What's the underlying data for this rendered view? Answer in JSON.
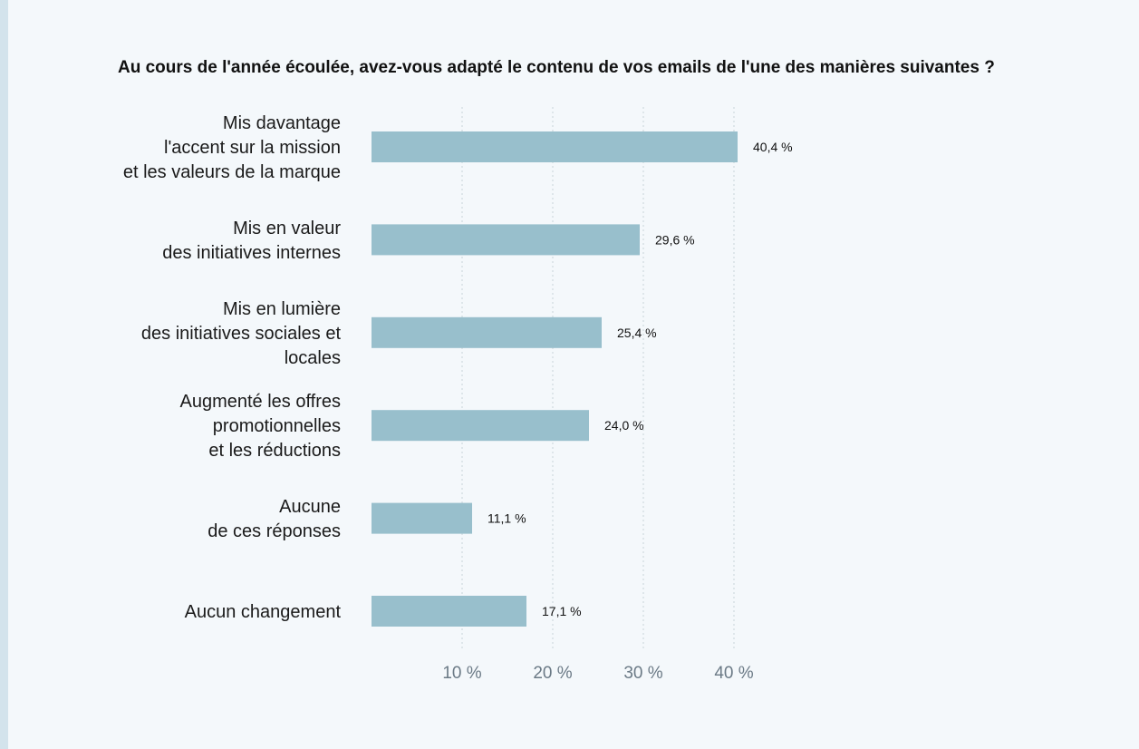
{
  "chart_data": {
    "type": "bar",
    "orientation": "horizontal",
    "title": "Au cours de l'année écoulée, avez-vous adapté le contenu de vos emails de l'une des manières suivantes ?",
    "categories": [
      [
        "Mis davantage",
        "l'accent sur la mission",
        "et les valeurs de la marque"
      ],
      [
        "Mis en valeur",
        "des initiatives internes"
      ],
      [
        "Mis en lumière",
        "des initiatives sociales et",
        "locales"
      ],
      [
        "Augmenté les offres",
        "promotionnelles",
        "et les réductions"
      ],
      [
        "Aucune",
        "de ces réponses"
      ],
      [
        "Aucun changement"
      ]
    ],
    "values": [
      40.4,
      29.6,
      25.4,
      24.0,
      11.1,
      17.1
    ],
    "value_labels": [
      "40,4 %",
      "29,6 %",
      "25,4 %",
      "24,0 %",
      "11,1 %",
      "17,1 %"
    ],
    "x_ticks": [
      10,
      20,
      30,
      40
    ],
    "x_tick_labels": [
      "10 %",
      "20 %",
      "30 %",
      "40 %"
    ],
    "xlim": [
      0,
      40
    ],
    "grid": "vertical dotted",
    "colors": {
      "bar": "#98bfcc",
      "grid": "#c9d4da",
      "tick_text": "#6b7a86",
      "background": "#f4f8fb"
    }
  }
}
